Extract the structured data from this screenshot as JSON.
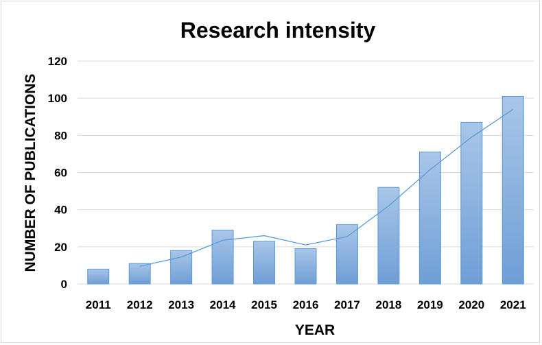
{
  "chart_data": {
    "type": "bar",
    "title": "Research intensity",
    "xlabel": "YEAR",
    "ylabel": "NUMBER OF PUBLICATIONS",
    "categories": [
      "2011",
      "2012",
      "2013",
      "2014",
      "2015",
      "2016",
      "2017",
      "2018",
      "2019",
      "2020",
      "2021"
    ],
    "values": [
      8,
      11,
      18,
      29,
      23,
      19,
      32,
      52,
      71,
      87,
      101
    ],
    "trendline": {
      "type": "moving-average-2",
      "values": [
        null,
        9.5,
        14.5,
        23.5,
        26,
        21,
        25.5,
        42,
        61.5,
        79,
        94
      ]
    },
    "ylim": [
      0,
      120
    ],
    "yticks": [
      0,
      20,
      40,
      60,
      80,
      100,
      120
    ],
    "grid": true,
    "legend": "none",
    "colors": {
      "bar_fill_top": "#a9c6e8",
      "bar_fill_bottom": "#6f9ed6",
      "bar_stroke": "#5b9bd5",
      "trendline": "#5b9bd5",
      "grid": "#d9d9d9"
    }
  }
}
